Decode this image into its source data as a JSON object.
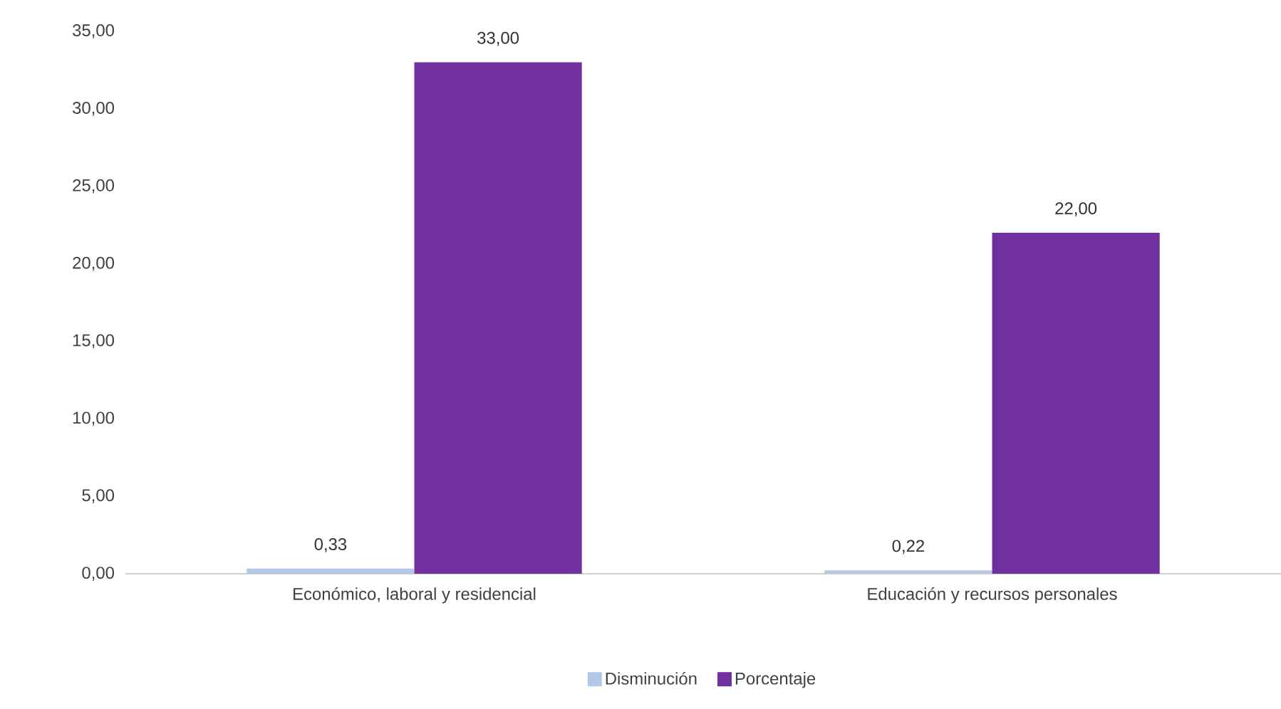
{
  "chart_data": {
    "type": "bar",
    "categories": [
      "Económico, laboral y residencial",
      "Educación y recursos personales"
    ],
    "series": [
      {
        "name": "Disminución",
        "color": "#b4c7e7",
        "values": [
          0.33,
          0.22
        ],
        "value_labels": [
          "0,33",
          "0,22"
        ]
      },
      {
        "name": "Porcentaje",
        "color": "#7030a0",
        "values": [
          33,
          22
        ],
        "value_labels": [
          "33,00",
          "22,00"
        ]
      }
    ],
    "ylim": [
      0,
      35
    ],
    "yticks": [
      {
        "value": 0,
        "label": "0,00"
      },
      {
        "value": 5,
        "label": "5,00"
      },
      {
        "value": 10,
        "label": "10,00"
      },
      {
        "value": 15,
        "label": "15,00"
      },
      {
        "value": 20,
        "label": "20,00"
      },
      {
        "value": 25,
        "label": "25,00"
      },
      {
        "value": 30,
        "label": "30,00"
      },
      {
        "value": 35,
        "label": "35,00"
      }
    ],
    "legend": "bottom"
  }
}
